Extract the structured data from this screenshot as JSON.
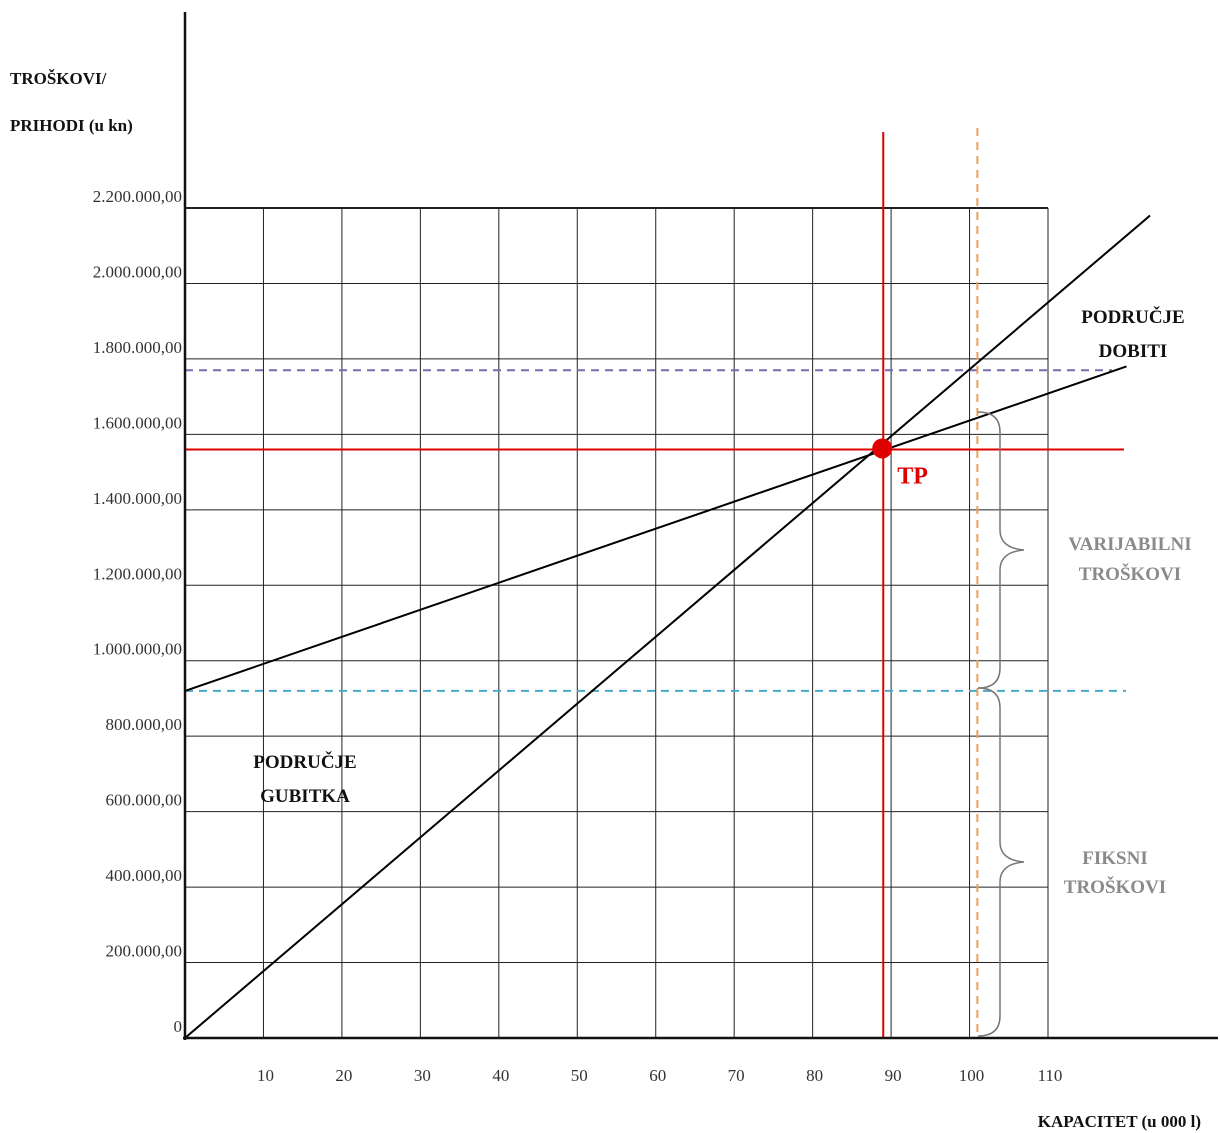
{
  "chart_data": {
    "type": "line",
    "ylabel_lines": [
      "TROŠKOVI/",
      "PRIHODI (u kn)"
    ],
    "xlabel": "KAPACITET (u 000 l)",
    "x_ticks": [
      "10",
      "20",
      "30",
      "40",
      "50",
      "60",
      "70",
      "80",
      "90",
      "100",
      "110"
    ],
    "y_ticks": [
      "0",
      "200.000,00",
      "400.000,00",
      "600.000,00",
      "800.000,00",
      "1.000.000,00",
      "1.200.000,00",
      "1.400.000,00",
      "1.600.000,00",
      "1.800.000,00",
      "2.000.000,00",
      "2.200.000,00"
    ],
    "xlim": [
      0,
      110
    ],
    "ylim": [
      0,
      2200000
    ],
    "grid": true,
    "series": [
      {
        "key": "revenue",
        "x": [
          0,
          123
        ],
        "y": [
          0,
          2180000
        ],
        "color": "#000000"
      },
      {
        "key": "total_costs",
        "x": [
          0,
          120
        ],
        "y": [
          920000,
          1780000
        ],
        "color": "#000000"
      }
    ],
    "reference_lines": {
      "fixed_costs_y": 920000,
      "fixed_costs_color": "#4aa8c8",
      "max_total_costs_y": 1770000,
      "max_total_costs_color": "#7a68b0",
      "breakeven_y": 1560000,
      "breakeven_x": 89,
      "breakeven_color": "#e00000",
      "capacity_x": 101,
      "capacity_color": "#e8a060"
    },
    "breakeven_point": {
      "x": 89,
      "y": 1560000,
      "label": "TP"
    },
    "annotations": {
      "profit_region": [
        "PODRUČJE",
        "DOBITI"
      ],
      "loss_region": [
        "PODRUČJE",
        "GUBITKA"
      ],
      "variable_costs": [
        "VARIJABILNI",
        "TROŠKOVI"
      ],
      "fixed_costs": [
        "FIKSNI",
        "TROŠKOVI"
      ]
    }
  }
}
